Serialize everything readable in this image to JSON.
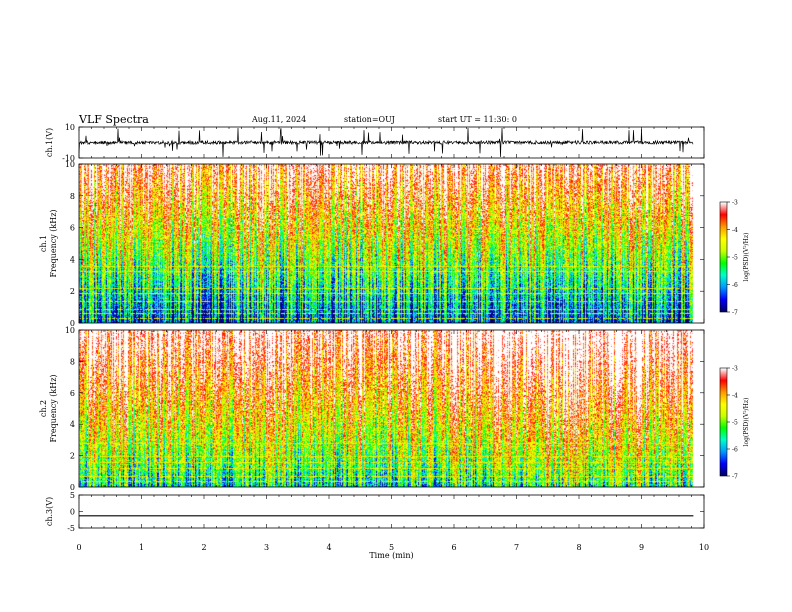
{
  "header": {
    "title": "VLF Spectra",
    "date": "Aug.11, 2024",
    "station": "station=OUJ",
    "start": "start UT =  11:30: 0"
  },
  "chart_data": [
    {
      "type": "line",
      "panel": "ch1-waveform",
      "ylabel": "ch.1(V)",
      "ylim": [
        -10,
        10
      ],
      "yticks": [
        "10",
        "-10"
      ],
      "series": [
        {
          "trace": "noisy waveform",
          "baseline": 0,
          "spike_amplitude": 10
        }
      ]
    },
    {
      "type": "heatmap",
      "panel": "ch1-spectrogram",
      "ylabel": "ch.1  Frequency (kHz)",
      "ylim": [
        0,
        10
      ],
      "yticks": [
        "0",
        "2",
        "4",
        "6",
        "8",
        "10"
      ],
      "colorbar": {
        "label": "log(PSD)(V²/Hz)",
        "ticks": [
          "-3",
          "-4",
          "-5",
          "-6",
          "-7"
        ],
        "range": [
          -7,
          -3
        ]
      }
    },
    {
      "type": "heatmap",
      "panel": "ch2-spectrogram",
      "ylabel": "ch.2  Frequency (kHz)",
      "ylim": [
        0,
        10
      ],
      "yticks": [
        "0",
        "2",
        "4",
        "6",
        "8",
        "10"
      ],
      "colorbar": {
        "label": "log(PSD)(V²/Hz)",
        "ticks": [
          "-3",
          "-4",
          "-5",
          "-6",
          "-7"
        ],
        "range": [
          -7,
          -3
        ]
      }
    },
    {
      "type": "line",
      "panel": "ch3-waveform",
      "ylabel": "ch.3(V)",
      "ylim": [
        -5,
        5
      ],
      "yticks": [
        "5",
        "0",
        "-5"
      ],
      "series": [
        {
          "trace": "flat",
          "value": -1.3
        }
      ]
    }
  ],
  "xaxis": {
    "label": "Time (min)",
    "range": [
      0,
      10
    ],
    "ticks": [
      "0",
      "1",
      "2",
      "3",
      "4",
      "5",
      "6",
      "7",
      "8",
      "9",
      "10"
    ],
    "data_end": 9.83
  },
  "colors": {
    "background": "#ffffff",
    "axes": "#000000",
    "colormap": [
      "#000066",
      "#0000ff",
      "#0099ff",
      "#00ffcc",
      "#00ff00",
      "#ccff00",
      "#ffff00",
      "#ff9900",
      "#ff0000",
      "#ffffff"
    ]
  }
}
